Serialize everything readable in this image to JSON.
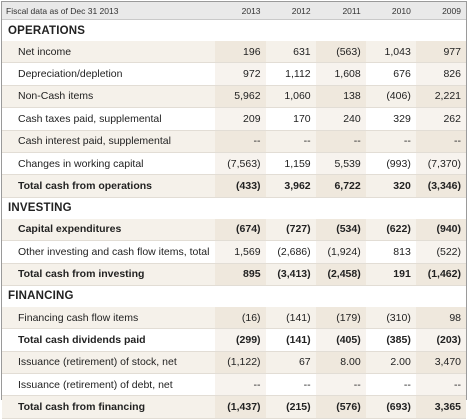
{
  "header": {
    "label": "Fiscal data as of Dec 31 2013",
    "years": [
      "2013",
      "2012",
      "2011",
      "2010",
      "2009"
    ]
  },
  "sections": [
    {
      "title": "OPERATIONS",
      "rows": [
        {
          "label": "Net income",
          "values": [
            "196",
            "631",
            "(563)",
            "1,043",
            "977"
          ],
          "bold": false
        },
        {
          "label": "Depreciation/depletion",
          "values": [
            "972",
            "1,112",
            "1,608",
            "676",
            "826"
          ],
          "bold": false
        },
        {
          "label": "Non-Cash items",
          "values": [
            "5,962",
            "1,060",
            "138",
            "(406)",
            "2,221"
          ],
          "bold": false
        },
        {
          "label": "Cash taxes paid, supplemental",
          "values": [
            "209",
            "170",
            "240",
            "329",
            "262"
          ],
          "bold": false
        },
        {
          "label": "Cash interest paid, supplemental",
          "values": [
            "--",
            "--",
            "--",
            "--",
            "--"
          ],
          "bold": false
        },
        {
          "label": "Changes in working capital",
          "values": [
            "(7,563)",
            "1,159",
            "5,539",
            "(993)",
            "(7,370)"
          ],
          "bold": false
        },
        {
          "label": "Total cash from operations",
          "values": [
            "(433)",
            "3,962",
            "6,722",
            "320",
            "(3,346)"
          ],
          "bold": true
        }
      ]
    },
    {
      "title": "INVESTING",
      "rows": [
        {
          "label": "Capital expenditures",
          "values": [
            "(674)",
            "(727)",
            "(534)",
            "(622)",
            "(940)"
          ],
          "bold": true
        },
        {
          "label": "Other investing and cash flow items, total",
          "values": [
            "1,569",
            "(2,686)",
            "(1,924)",
            "813",
            "(522)"
          ],
          "bold": false
        },
        {
          "label": "Total cash from investing",
          "values": [
            "895",
            "(3,413)",
            "(2,458)",
            "191",
            "(1,462)"
          ],
          "bold": true
        }
      ]
    },
    {
      "title": "FINANCING",
      "rows": [
        {
          "label": "Financing cash flow items",
          "values": [
            "(16)",
            "(141)",
            "(179)",
            "(310)",
            "98"
          ],
          "bold": false
        },
        {
          "label": "Total cash dividends paid",
          "values": [
            "(299)",
            "(141)",
            "(405)",
            "(385)",
            "(203)"
          ],
          "bold": true
        },
        {
          "label": "Issuance (retirement) of stock, net",
          "values": [
            "(1,122)",
            "67",
            "8.00",
            "2.00",
            "3,470"
          ],
          "bold": false
        },
        {
          "label": "Issuance (retirement) of debt, net",
          "values": [
            "--",
            "--",
            "--",
            "--",
            "--"
          ],
          "bold": false
        },
        {
          "label": "Total cash from financing",
          "values": [
            "(1,437)",
            "(215)",
            "(576)",
            "(693)",
            "3,365"
          ],
          "bold": true
        }
      ]
    }
  ]
}
